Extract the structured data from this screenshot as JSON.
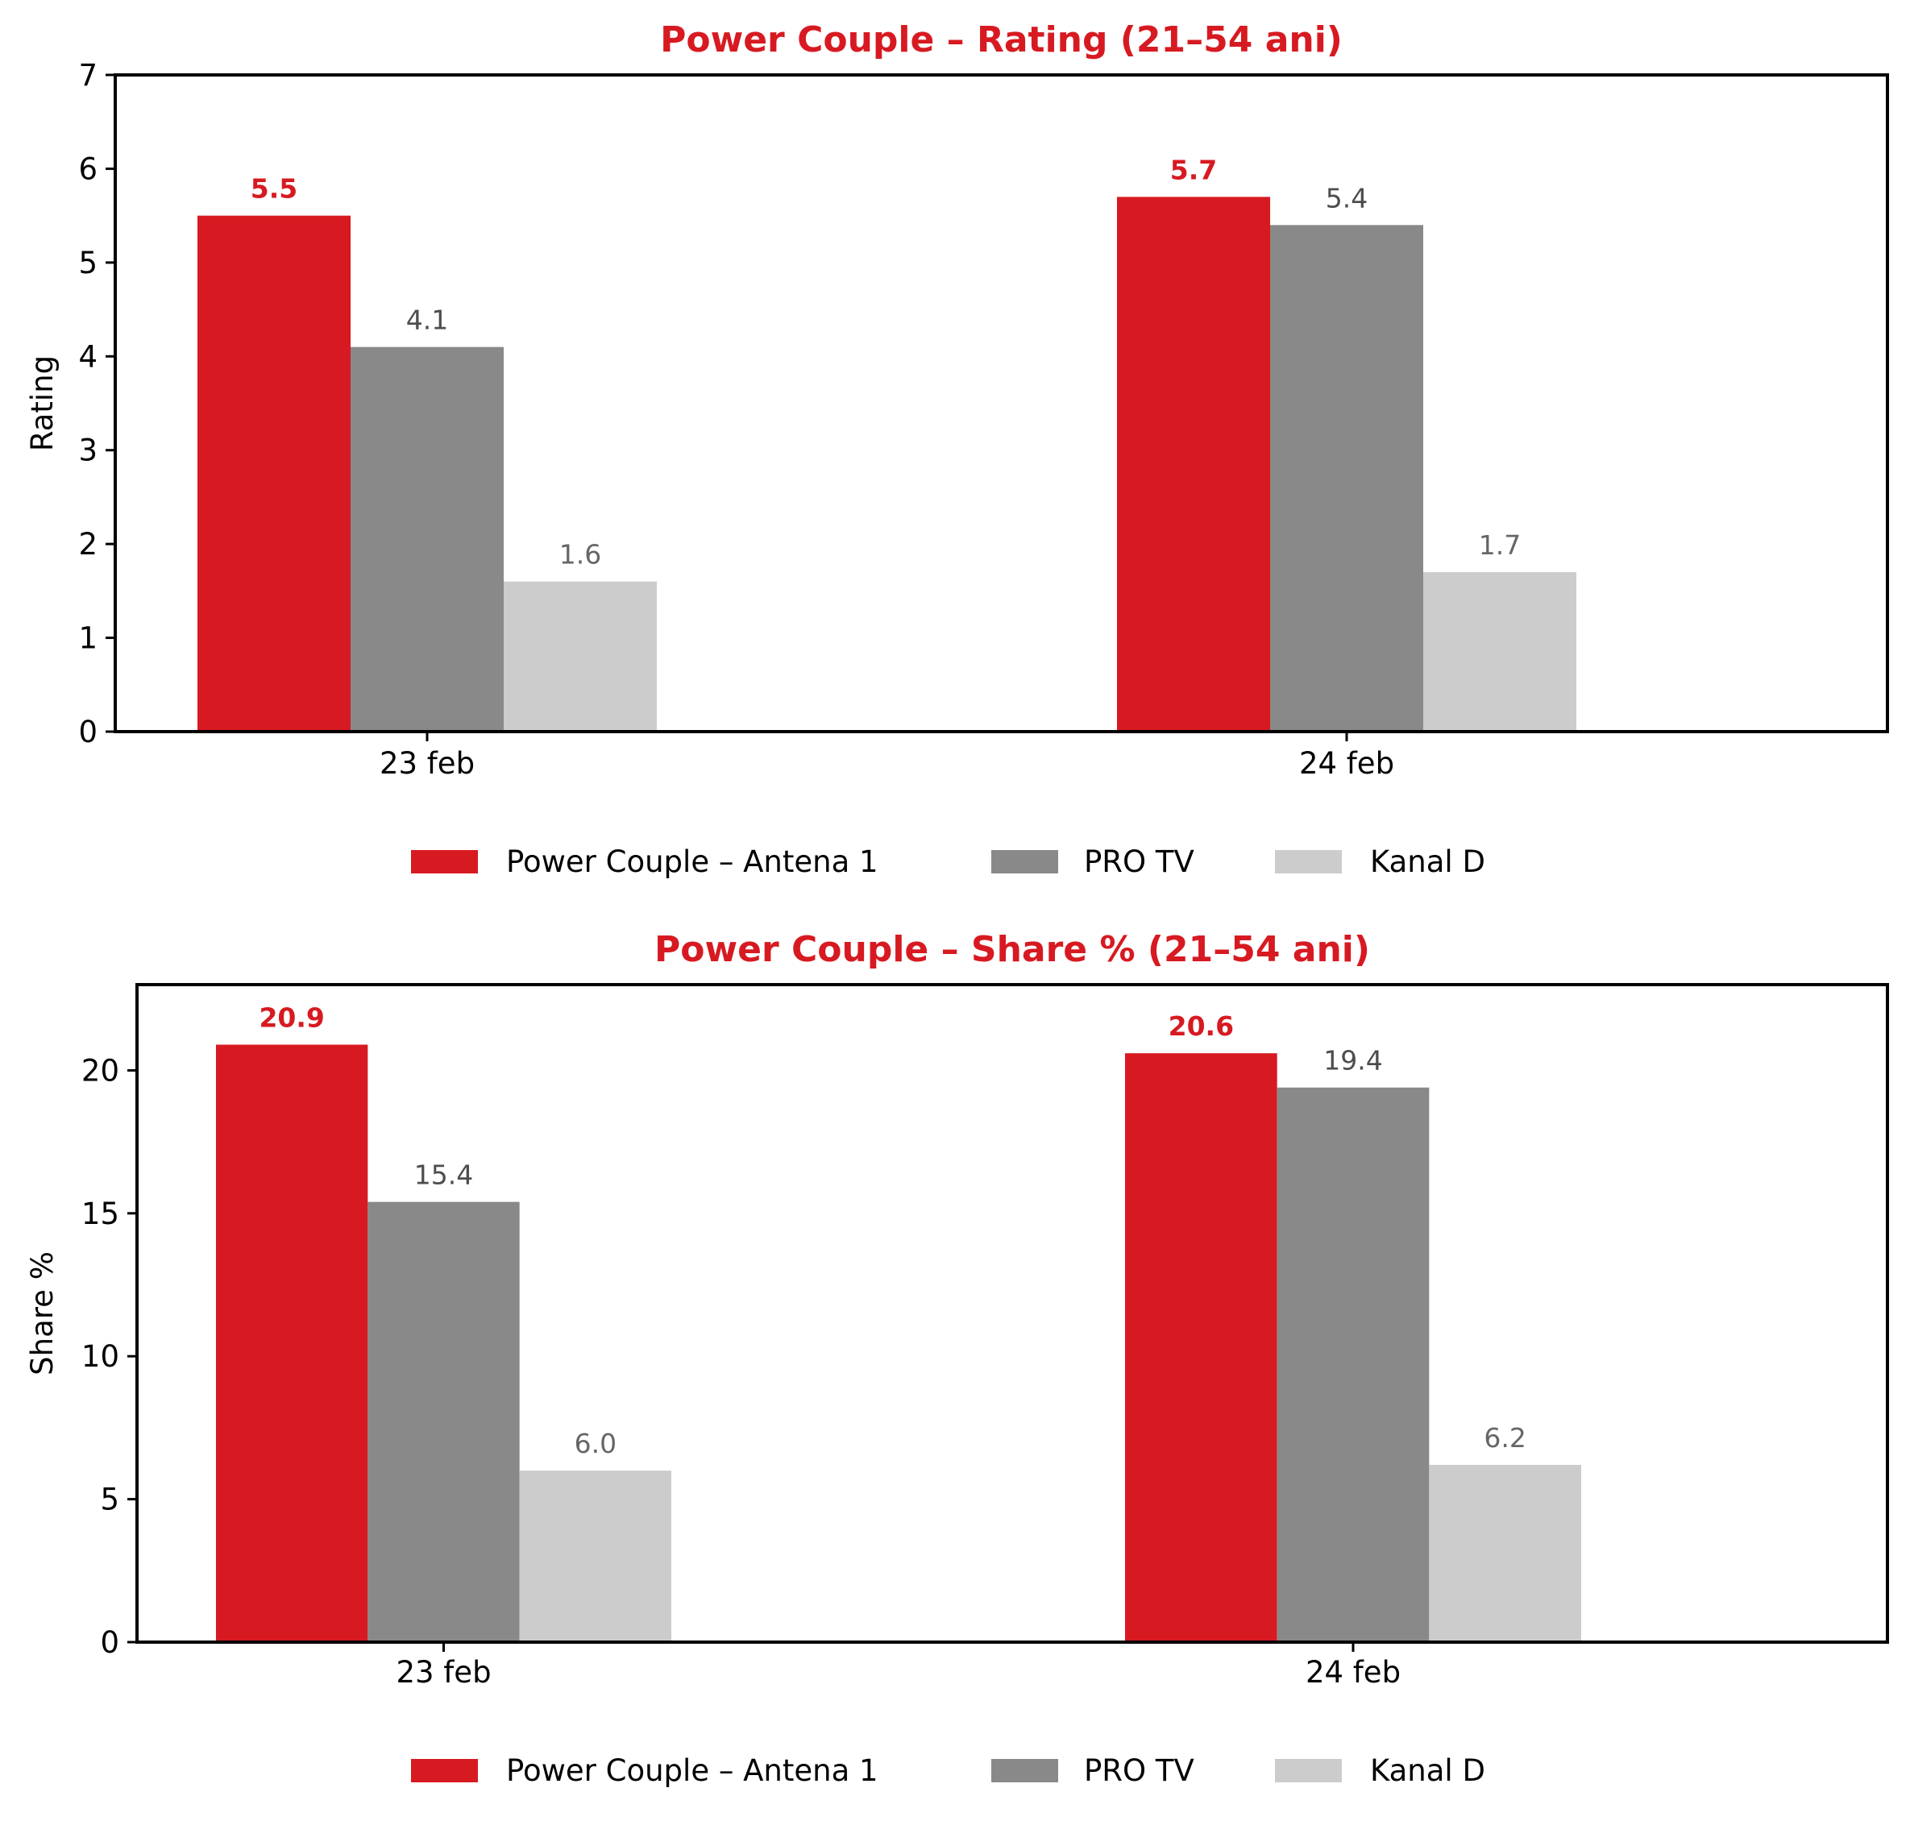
{
  "colors": {
    "antena": "#d71a21",
    "protv": "#898989",
    "kanald": "#cccccc",
    "title": "#d71a21",
    "label_antena": "#d71a21",
    "label_other": "#4d4d4d"
  },
  "chart_data": [
    {
      "type": "bar",
      "title": "Power Couple – Rating (21–54 ani)",
      "xlabel": "",
      "ylabel": "Rating",
      "categories": [
        "23 feb",
        "24 feb"
      ],
      "ylim": [
        0,
        7
      ],
      "yticks": [
        "0",
        "1",
        "2",
        "3",
        "4",
        "5",
        "6",
        "7"
      ],
      "legend": "below",
      "series": [
        {
          "name": "Power Couple – Antena 1",
          "values": [
            5.5,
            5.7
          ],
          "labels": [
            "5.5",
            "5.7"
          ]
        },
        {
          "name": "PRO TV",
          "values": [
            4.1,
            5.4
          ],
          "labels": [
            "4.1",
            "5.4"
          ]
        },
        {
          "name": "Kanal D",
          "values": [
            1.6,
            1.7
          ],
          "labels": [
            "1.6",
            "1.7"
          ]
        }
      ]
    },
    {
      "type": "bar",
      "title": "Power Couple – Share % (21–54 ani)",
      "xlabel": "",
      "ylabel": "Share %",
      "categories": [
        "23 feb",
        "24 feb"
      ],
      "ylim": [
        0,
        23
      ],
      "yticks": [
        "0",
        "5",
        "10",
        "15",
        "20"
      ],
      "legend": "below",
      "series": [
        {
          "name": "Power Couple – Antena 1",
          "values": [
            20.9,
            20.6
          ],
          "labels": [
            "20.9",
            "20.6"
          ]
        },
        {
          "name": "PRO TV",
          "values": [
            15.4,
            19.4
          ],
          "labels": [
            "15.4",
            "19.4"
          ]
        },
        {
          "name": "Kanal D",
          "values": [
            6.0,
            6.2
          ],
          "labels": [
            "6.0",
            "6.2"
          ]
        }
      ]
    }
  ]
}
